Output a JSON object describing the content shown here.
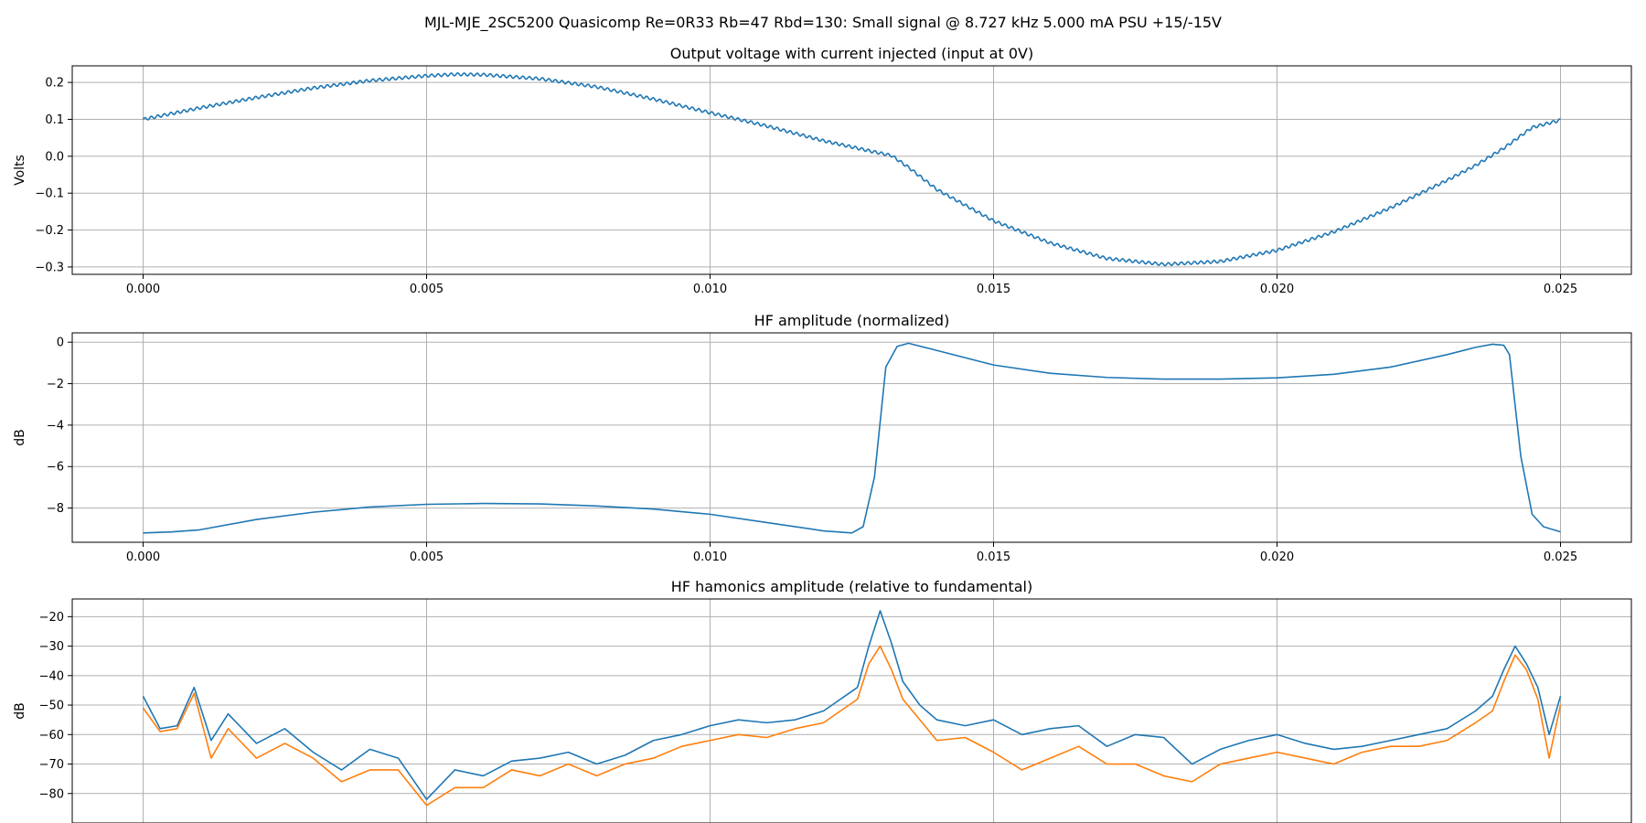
{
  "figure": {
    "suptitle": "MJL-MJE_2SC5200 Quasicomp Re=0R33 Rb=47 Rbd=130: Small signal @ 8.727 kHz 5.000 mA PSU +15/-15V"
  },
  "chart_data": [
    {
      "type": "line",
      "title": "Output voltage with current injected (input at 0V)",
      "xlabel": "",
      "ylabel": "Volts",
      "xlim": [
        -0.00125,
        0.02625
      ],
      "ylim": [
        -0.32,
        0.245
      ],
      "xticks": [
        0.0,
        0.005,
        0.01,
        0.015,
        0.02,
        0.025
      ],
      "xtick_labels": [
        "0.000",
        "0.005",
        "0.010",
        "0.015",
        "0.020",
        "0.025"
      ],
      "yticks": [
        -0.3,
        -0.2,
        -0.1,
        0.0,
        0.1,
        0.2
      ],
      "ytick_labels": [
        "−0.3",
        "−0.2",
        "−0.1",
        "0.0",
        "0.1",
        "0.2"
      ],
      "grid": true,
      "series": [
        {
          "color": "#1f77b4",
          "ripple_amplitude": 0.004,
          "ripple_period": 0.000115,
          "x": [
            0.0,
            0.001,
            0.002,
            0.003,
            0.004,
            0.005,
            0.0055,
            0.006,
            0.007,
            0.008,
            0.009,
            0.01,
            0.011,
            0.012,
            0.0128,
            0.0132,
            0.0135,
            0.014,
            0.015,
            0.016,
            0.017,
            0.018,
            0.019,
            0.02,
            0.021,
            0.022,
            0.023,
            0.0235,
            0.024,
            0.0245,
            0.025
          ],
          "y": [
            0.1,
            0.131,
            0.159,
            0.185,
            0.205,
            0.218,
            0.222,
            0.221,
            0.21,
            0.188,
            0.155,
            0.118,
            0.082,
            0.042,
            0.015,
            0.002,
            -0.03,
            -0.09,
            -0.175,
            -0.235,
            -0.277,
            -0.293,
            -0.285,
            -0.255,
            -0.205,
            -0.14,
            -0.065,
            -0.025,
            0.022,
            0.078,
            0.098
          ]
        }
      ]
    },
    {
      "type": "line",
      "title": "HF amplitude (normalized)",
      "xlabel": "",
      "ylabel": "dB",
      "xlim": [
        -0.00125,
        0.02625
      ],
      "ylim": [
        -9.65,
        0.45
      ],
      "xticks": [
        0.0,
        0.005,
        0.01,
        0.015,
        0.02,
        0.025
      ],
      "xtick_labels": [
        "0.000",
        "0.005",
        "0.010",
        "0.015",
        "0.020",
        "0.025"
      ],
      "yticks": [
        -8,
        -6,
        -4,
        -2,
        0
      ],
      "ytick_labels": [
        "−8",
        "−6",
        "−4",
        "−2",
        "0"
      ],
      "grid": true,
      "series": [
        {
          "color": "#1f77b4",
          "x": [
            0.0,
            0.0005,
            0.001,
            0.002,
            0.003,
            0.004,
            0.005,
            0.006,
            0.007,
            0.008,
            0.009,
            0.01,
            0.011,
            0.012,
            0.0125,
            0.0127,
            0.0129,
            0.0131,
            0.0133,
            0.0135,
            0.014,
            0.015,
            0.016,
            0.017,
            0.018,
            0.019,
            0.02,
            0.021,
            0.022,
            0.023,
            0.0235,
            0.0238,
            0.024,
            0.0241,
            0.0243,
            0.0245,
            0.0247,
            0.025
          ],
          "y": [
            -9.2,
            -9.15,
            -9.05,
            -8.55,
            -8.2,
            -7.95,
            -7.82,
            -7.78,
            -7.8,
            -7.9,
            -8.05,
            -8.3,
            -8.7,
            -9.1,
            -9.2,
            -8.9,
            -6.5,
            -1.2,
            -0.2,
            -0.05,
            -0.4,
            -1.1,
            -1.5,
            -1.7,
            -1.78,
            -1.78,
            -1.72,
            -1.55,
            -1.2,
            -0.6,
            -0.25,
            -0.1,
            -0.15,
            -0.6,
            -5.5,
            -8.3,
            -8.9,
            -9.15
          ]
        }
      ]
    },
    {
      "type": "line",
      "title": "HF hamonics amplitude (relative to fundamental)",
      "xlabel": "",
      "ylabel": "dB",
      "xlim": [
        -0.00125,
        0.02625
      ],
      "ylim": [
        -90,
        -14
      ],
      "xticks": [
        0.0,
        0.005,
        0.01,
        0.015,
        0.02,
        0.025
      ],
      "xtick_labels": [
        "0.000",
        "0.005",
        "0.010",
        "0.015",
        "0.020",
        "0.025"
      ],
      "yticks": [
        -80,
        -70,
        -60,
        -50,
        -40,
        -30,
        -20
      ],
      "ytick_labels": [
        "−80",
        "−70",
        "−60",
        "−50",
        "−40",
        "−30",
        "−20"
      ],
      "grid": true,
      "series": [
        {
          "color": "#1f77b4",
          "x": [
            0.0,
            0.0003,
            0.0006,
            0.0009,
            0.0012,
            0.0015,
            0.002,
            0.0025,
            0.003,
            0.0035,
            0.004,
            0.0045,
            0.005,
            0.0055,
            0.006,
            0.0065,
            0.007,
            0.0075,
            0.008,
            0.0085,
            0.009,
            0.0095,
            0.01,
            0.0105,
            0.011,
            0.0115,
            0.012,
            0.0123,
            0.0126,
            0.0128,
            0.013,
            0.0132,
            0.0134,
            0.0137,
            0.014,
            0.0145,
            0.015,
            0.0155,
            0.016,
            0.0165,
            0.017,
            0.0175,
            0.018,
            0.0185,
            0.019,
            0.0195,
            0.02,
            0.0205,
            0.021,
            0.0215,
            0.022,
            0.0225,
            0.023,
            0.0235,
            0.0238,
            0.024,
            0.0242,
            0.0244,
            0.0246,
            0.0248,
            0.025
          ],
          "y": [
            -47,
            -58,
            -57,
            -44,
            -62,
            -53,
            -63,
            -58,
            -66,
            -72,
            -65,
            -68,
            -82,
            -72,
            -74,
            -69,
            -68,
            -66,
            -70,
            -67,
            -62,
            -60,
            -57,
            -55,
            -56,
            -55,
            -52,
            -48,
            -44,
            -30,
            -18,
            -29,
            -42,
            -50,
            -55,
            -57,
            -55,
            -60,
            -58,
            -57,
            -64,
            -60,
            -61,
            -70,
            -65,
            -62,
            -60,
            -63,
            -65,
            -64,
            -62,
            -60,
            -58,
            -52,
            -47,
            -38,
            -30,
            -36,
            -44,
            -60,
            -47
          ]
        },
        {
          "color": "#ff7f0e",
          "x": [
            0.0,
            0.0003,
            0.0006,
            0.0009,
            0.0012,
            0.0015,
            0.002,
            0.0025,
            0.003,
            0.0035,
            0.004,
            0.0045,
            0.005,
            0.0055,
            0.006,
            0.0065,
            0.007,
            0.0075,
            0.008,
            0.0085,
            0.009,
            0.0095,
            0.01,
            0.0105,
            0.011,
            0.0115,
            0.012,
            0.0123,
            0.0126,
            0.0128,
            0.013,
            0.0132,
            0.0134,
            0.0137,
            0.014,
            0.0145,
            0.015,
            0.0155,
            0.016,
            0.0165,
            0.017,
            0.0175,
            0.018,
            0.0185,
            0.019,
            0.0195,
            0.02,
            0.0205,
            0.021,
            0.0215,
            0.022,
            0.0225,
            0.023,
            0.0235,
            0.0238,
            0.024,
            0.0242,
            0.0244,
            0.0246,
            0.0248,
            0.025
          ],
          "y": [
            -51,
            -59,
            -58,
            -46,
            -68,
            -58,
            -68,
            -63,
            -68,
            -76,
            -72,
            -72,
            -84,
            -78,
            -78,
            -72,
            -74,
            -70,
            -74,
            -70,
            -68,
            -64,
            -62,
            -60,
            -61,
            -58,
            -56,
            -52,
            -48,
            -36,
            -30,
            -38,
            -48,
            -55,
            -62,
            -61,
            -66,
            -72,
            -68,
            -64,
            -70,
            -70,
            -74,
            -76,
            -70,
            -68,
            -66,
            -68,
            -70,
            -66,
            -64,
            -64,
            -62,
            -56,
            -52,
            -42,
            -33,
            -38,
            -48,
            -68,
            -50
          ]
        }
      ]
    }
  ]
}
